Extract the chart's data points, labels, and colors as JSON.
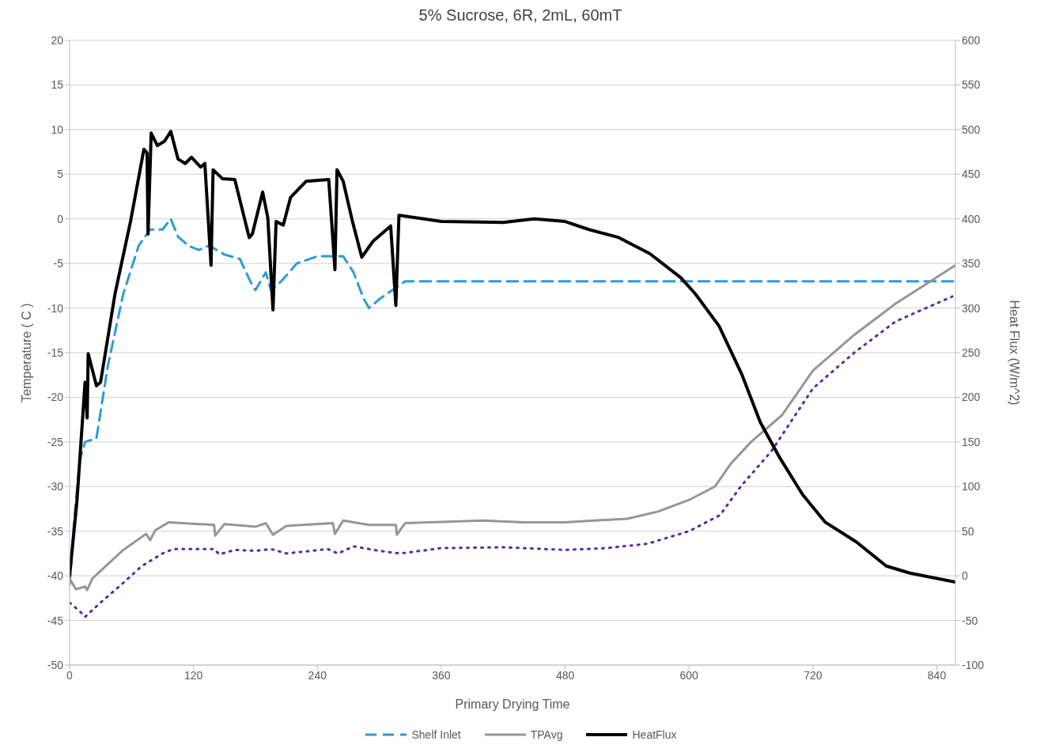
{
  "chart_data": {
    "type": "line",
    "title": "5% Sucrose, 6R, 2mL, 60mT",
    "xlabel": "Primary Drying Time",
    "ylabel": "Temperature ( C )",
    "y2label": "Heat Flux (W/m^2)",
    "xlim": [
      0,
      858
    ],
    "xticks": [
      0,
      120,
      240,
      360,
      480,
      600,
      720,
      840
    ],
    "ylim": [
      -50,
      20
    ],
    "yticks": [
      -50,
      -45,
      -40,
      -35,
      -30,
      -25,
      -20,
      -15,
      -10,
      -5,
      0,
      5,
      10,
      15,
      20
    ],
    "y2lim": [
      -100,
      600
    ],
    "y2ticks": [
      -100,
      -50,
      0,
      50,
      100,
      150,
      200,
      250,
      300,
      350,
      400,
      450,
      500,
      550,
      600
    ],
    "grid": "y",
    "legend": "bottom",
    "marker": "none",
    "series": [
      {
        "name": "Shelf Inlet",
        "color": "#2e9bd6",
        "line_style": "dashed",
        "x": [
          0,
          5,
          10,
          15,
          26,
          37,
          52,
          67,
          78,
          90,
          98,
          105,
          115,
          125,
          135,
          150,
          165,
          175,
          180,
          190,
          195,
          205,
          220,
          240,
          265,
          275,
          285,
          290,
          300,
          315,
          325,
          360,
          480,
          600,
          720,
          858
        ],
        "values": [
          -41,
          -33,
          -27,
          -25,
          -24.6,
          -16.5,
          -8.4,
          -3,
          -1.2,
          -1.2,
          0,
          -2,
          -3,
          -3.5,
          -3,
          -4,
          -4.5,
          -7,
          -8,
          -6,
          -8,
          -7,
          -5,
          -4.2,
          -4.2,
          -6,
          -9,
          -10,
          -9,
          -7.8,
          -7,
          -7,
          -7,
          -7,
          -7,
          -7
        ]
      },
      {
        "color": "#5a2a9e",
        "line_style": "dotted",
        "x": [
          0,
          10,
          15,
          30,
          50,
          70,
          90,
          100,
          140,
          145,
          160,
          180,
          195,
          210,
          250,
          260,
          275,
          300,
          320,
          360,
          420,
          480,
          520,
          560,
          600,
          630,
          650,
          680,
          720,
          760,
          800,
          855
        ],
        "values": [
          -43,
          -44,
          -44.6,
          -43,
          -41,
          -38.9,
          -37.5,
          -37,
          -37,
          -37.6,
          -37.1,
          -37.2,
          -37,
          -37.5,
          -37,
          -37.5,
          -36.7,
          -37.2,
          -37.5,
          -36.9,
          -36.8,
          -37.1,
          -36.9,
          -36.4,
          -35,
          -33.2,
          -30,
          -26,
          -19,
          -15,
          -11.5,
          -8.7
        ]
      },
      {
        "name": "TPAvg",
        "color": "#969696",
        "line_style": "solid",
        "x": [
          0,
          6,
          15,
          17,
          22,
          52,
          74,
          78,
          83,
          96,
          140,
          141,
          150,
          180,
          190,
          197,
          210,
          255,
          257,
          265,
          290,
          316,
          317,
          325,
          400,
          440,
          480,
          540,
          570,
          600,
          625,
          640,
          660,
          690,
          720,
          760,
          800,
          858
        ],
        "values": [
          -40.3,
          -41.5,
          -41.2,
          -41.6,
          -40.3,
          -37.1,
          -35.3,
          -36,
          -34.9,
          -34,
          -34.3,
          -35.5,
          -34.2,
          -34.5,
          -34.1,
          -35.4,
          -34.4,
          -34.1,
          -35.3,
          -33.8,
          -34.3,
          -34.3,
          -35.4,
          -34.1,
          -33.8,
          -34,
          -34,
          -33.6,
          -32.8,
          -31.5,
          -30,
          -27.5,
          -25,
          -22,
          -17,
          -13,
          -9.5,
          -5.2
        ]
      },
      {
        "name": "HeatFlux",
        "color": "#000000",
        "line_style": "solid",
        "axis": "y2",
        "x": [
          0,
          7,
          15,
          17,
          18,
          26,
          30,
          44,
          59,
          72,
          75,
          76,
          79,
          85,
          92,
          98,
          105,
          112,
          118,
          127,
          131,
          137,
          139,
          148,
          160,
          174,
          177,
          187,
          192,
          197,
          200,
          207,
          214,
          229,
          251,
          257,
          259,
          265,
          274,
          283,
          294,
          311,
          316,
          319,
          360,
          420,
          450,
          480,
          503,
          532,
          562,
          592,
          606,
          629,
          651,
          669,
          688,
          710,
          732,
          762,
          791,
          814,
          858
        ],
        "values": [
          0,
          82,
          217,
          177,
          249,
          213,
          217,
          316,
          397,
          478,
          474,
          383,
          496,
          482,
          487,
          498,
          467,
          462,
          469,
          458,
          462,
          348,
          455,
          445,
          444,
          379,
          383,
          430,
          401,
          298,
          397,
          393,
          424,
          442,
          444,
          343,
          455,
          442,
          397,
          357,
          375,
          392,
          303,
          404,
          397,
          396,
          400,
          397,
          388,
          379,
          361,
          334,
          316,
          280,
          226,
          172,
          132,
          91,
          60,
          38,
          11,
          3,
          -7
        ]
      }
    ]
  }
}
